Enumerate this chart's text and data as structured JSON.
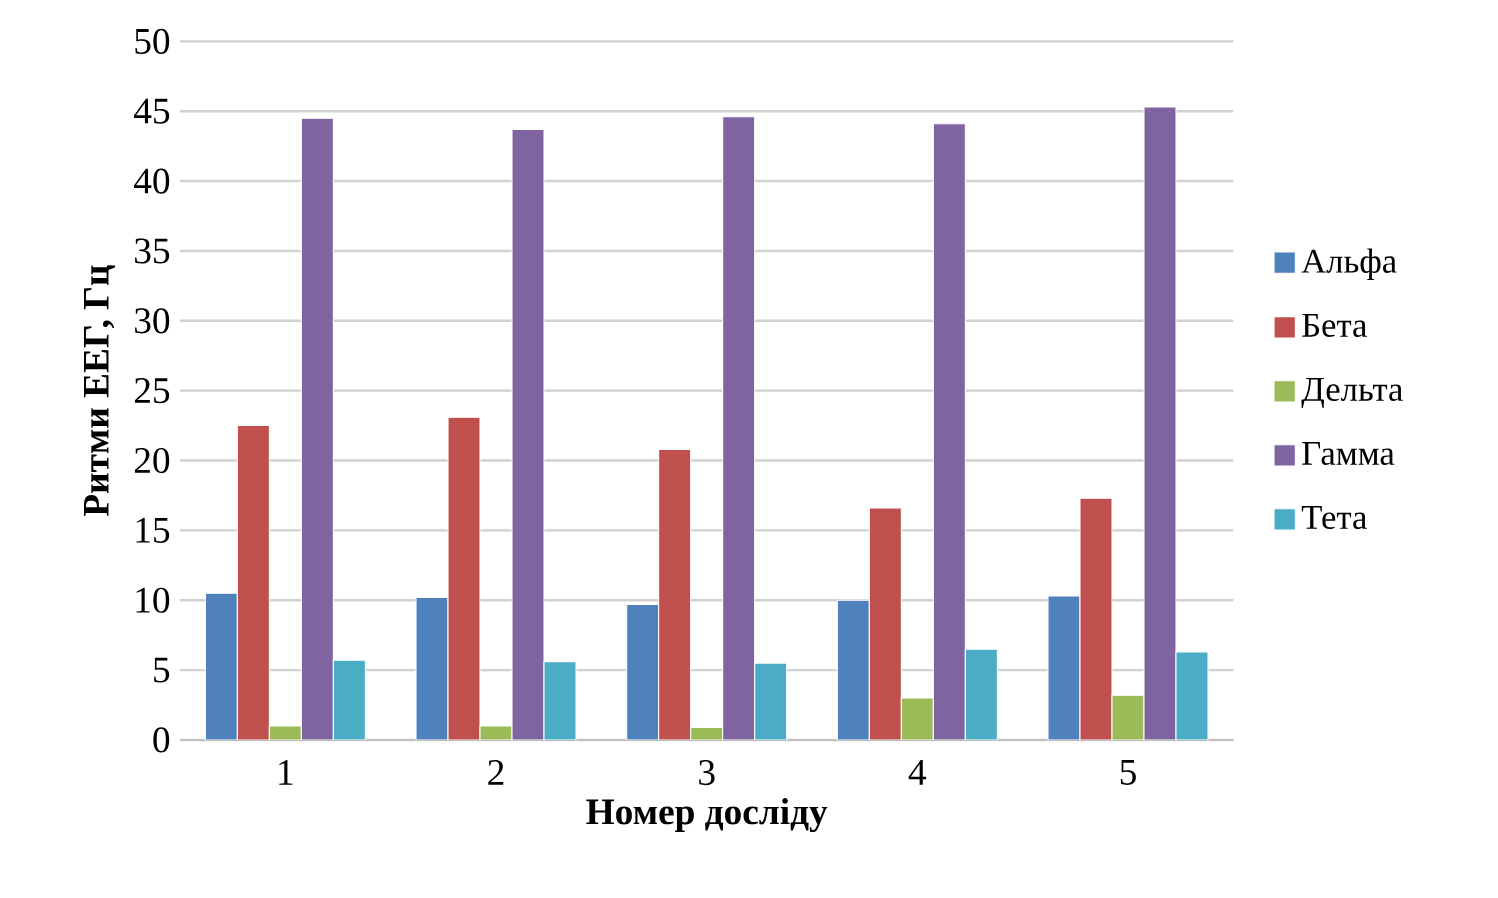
{
  "chart_data": {
    "type": "bar",
    "xlabel": "Номер досліду",
    "ylabel": "Ритми ЕЕГ, Гц",
    "categories": [
      "1",
      "2",
      "3",
      "4",
      "5"
    ],
    "series": [
      {
        "name": "Альфа",
        "color": "#4f81bd",
        "values": [
          10.5,
          10.2,
          9.7,
          10.0,
          10.3
        ]
      },
      {
        "name": "Бета",
        "color": "#c0504d",
        "values": [
          22.5,
          23.1,
          20.8,
          16.6,
          17.3
        ]
      },
      {
        "name": "Дельта",
        "color": "#9bbb59",
        "values": [
          1.0,
          1.0,
          0.9,
          3.0,
          3.2
        ]
      },
      {
        "name": "Гамма",
        "color": "#8064a2",
        "values": [
          44.5,
          43.7,
          44.6,
          44.1,
          45.3
        ]
      },
      {
        "name": "Тета",
        "color": "#4bacc6",
        "values": [
          5.7,
          5.6,
          5.5,
          6.5,
          6.3
        ]
      }
    ],
    "ylim": [
      0,
      50
    ],
    "yticks": [
      0,
      5,
      10,
      15,
      20,
      25,
      30,
      35,
      40,
      45,
      50
    ],
    "grid": "y",
    "legend": "right"
  }
}
